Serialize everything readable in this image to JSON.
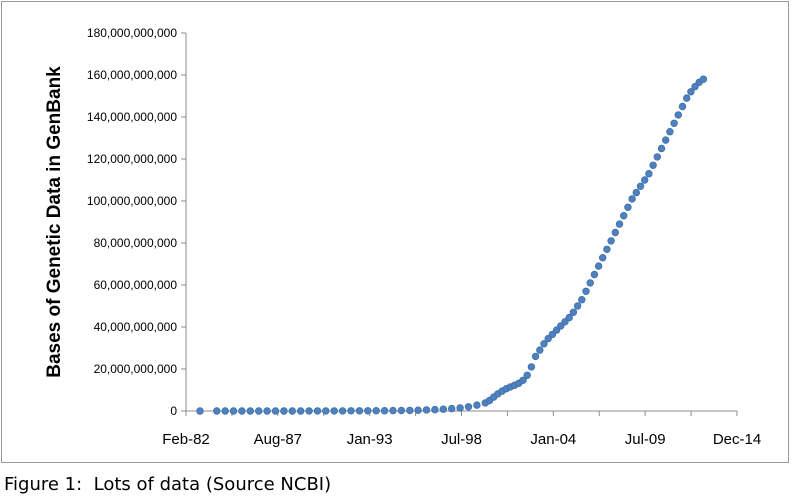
{
  "caption": "Figure 1:  Lots of data (Source NCBI)",
  "chart_data": {
    "type": "scatter",
    "title": "",
    "xlabel": "",
    "ylabel": "Bases of Genetic Data in GenBank",
    "x_ticks": [
      "Feb-82",
      "Aug-87",
      "Jan-93",
      "Jul-98",
      "Jan-04",
      "Jul-09",
      "Dec-14"
    ],
    "x_range": [
      "1982-02",
      "2014-12"
    ],
    "y_ticks": [
      "0",
      "20,000,000,000",
      "40,000,000,000",
      "60,000,000,000",
      "80,000,000,000",
      "100,000,000,000",
      "120,000,000,000",
      "140,000,000,000",
      "160,000,000,000",
      "180,000,000,000"
    ],
    "ylim": [
      0,
      180000000000
    ],
    "grid": false,
    "legend": "none",
    "marker_color": "#4f81bd",
    "marker_edge_color": "#3d6fae",
    "series": [
      {
        "points": [
          [
            "1982-12",
            680338
          ],
          [
            "1983-12",
            2274029
          ],
          [
            "1984-06",
            3368765
          ],
          [
            "1984-12",
            4002614
          ],
          [
            "1985-06",
            5204420
          ],
          [
            "1985-12",
            6075632
          ],
          [
            "1986-06",
            7580000
          ],
          [
            "1986-12",
            9615371
          ],
          [
            "1987-06",
            12150000
          ],
          [
            "1987-12",
            15514776
          ],
          [
            "1988-06",
            19000000
          ],
          [
            "1988-12",
            23800000
          ],
          [
            "1989-06",
            29000000
          ],
          [
            "1989-12",
            34762585
          ],
          [
            "1990-06",
            40000000
          ],
          [
            "1990-12",
            49179285
          ],
          [
            "1991-06",
            60000000
          ],
          [
            "1991-12",
            71947426
          ],
          [
            "1992-06",
            88000000
          ],
          [
            "1992-12",
            101008486
          ],
          [
            "1993-06",
            130000000
          ],
          [
            "1993-12",
            157152442
          ],
          [
            "1994-06",
            190000000
          ],
          [
            "1994-12",
            217102462
          ],
          [
            "1995-06",
            300000000
          ],
          [
            "1995-12",
            384939485
          ],
          [
            "1996-06",
            520000000
          ],
          [
            "1996-12",
            651972984
          ],
          [
            "1997-06",
            850000000
          ],
          [
            "1997-12",
            1160300687
          ],
          [
            "1998-06",
            1500000000
          ],
          [
            "1998-12",
            2008761784
          ],
          [
            "1999-06",
            2800000000
          ],
          [
            "1999-12",
            3841163011
          ],
          [
            "2000-03",
            5000000000
          ],
          [
            "2000-06",
            6600000000
          ],
          [
            "2000-09",
            8200000000
          ],
          [
            "2000-12",
            9500000000
          ],
          [
            "2001-03",
            10600000000
          ],
          [
            "2001-06",
            11500000000
          ],
          [
            "2001-09",
            12300000000
          ],
          [
            "2001-12",
            13200000000
          ],
          [
            "2002-03",
            14600000000
          ],
          [
            "2002-06",
            17000000000
          ],
          [
            "2002-09",
            21000000000
          ],
          [
            "2002-12",
            26000000000
          ],
          [
            "2003-03",
            29000000000
          ],
          [
            "2003-06",
            32000000000
          ],
          [
            "2003-09",
            34500000000
          ],
          [
            "2003-12",
            36500000000
          ],
          [
            "2004-03",
            38500000000
          ],
          [
            "2004-06",
            40500000000
          ],
          [
            "2004-09",
            42500000000
          ],
          [
            "2004-12",
            44500000000
          ],
          [
            "2005-03",
            47000000000
          ],
          [
            "2005-06",
            50000000000
          ],
          [
            "2005-09",
            53000000000
          ],
          [
            "2005-12",
            57000000000
          ],
          [
            "2006-03",
            61000000000
          ],
          [
            "2006-06",
            65000000000
          ],
          [
            "2006-09",
            69000000000
          ],
          [
            "2006-12",
            73000000000
          ],
          [
            "2007-03",
            77000000000
          ],
          [
            "2007-06",
            81000000000
          ],
          [
            "2007-09",
            85000000000
          ],
          [
            "2007-12",
            89000000000
          ],
          [
            "2008-03",
            93000000000
          ],
          [
            "2008-06",
            97000000000
          ],
          [
            "2008-09",
            101000000000
          ],
          [
            "2008-12",
            104000000000
          ],
          [
            "2009-03",
            107000000000
          ],
          [
            "2009-06",
            110000000000
          ],
          [
            "2009-09",
            113000000000
          ],
          [
            "2009-12",
            117000000000
          ],
          [
            "2010-03",
            121000000000
          ],
          [
            "2010-06",
            125000000000
          ],
          [
            "2010-09",
            129000000000
          ],
          [
            "2010-12",
            133000000000
          ],
          [
            "2011-03",
            137000000000
          ],
          [
            "2011-06",
            141000000000
          ],
          [
            "2011-09",
            145000000000
          ],
          [
            "2011-12",
            149000000000
          ],
          [
            "2012-03",
            152000000000
          ],
          [
            "2012-06",
            154500000000
          ],
          [
            "2012-09",
            156500000000
          ],
          [
            "2012-12",
            158000000000
          ]
        ]
      }
    ]
  }
}
